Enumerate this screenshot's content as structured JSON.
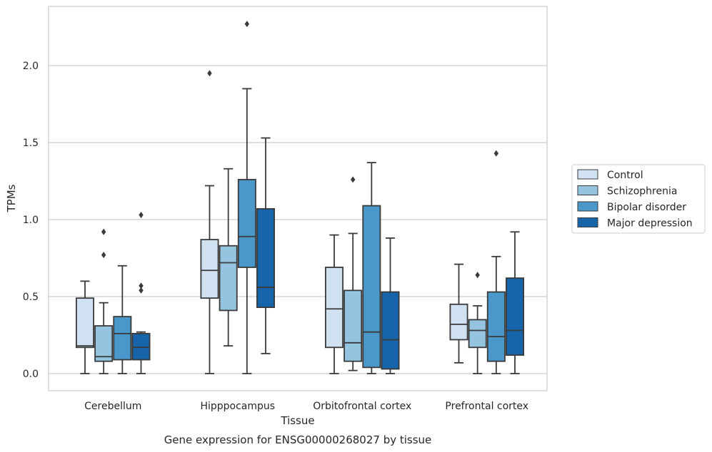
{
  "chart_data": {
    "type": "box",
    "xlabel": "Tissue",
    "ylabel": "TPMs",
    "caption": "Gene expression for ENSG00000268027 by tissue",
    "ylim": [
      -0.11,
      2.38
    ],
    "yticks": [
      "0.0",
      "0.5",
      "1.0",
      "1.5",
      "2.0"
    ],
    "grid": "horizontal",
    "legend_position": "right",
    "categories": [
      "Cerebellum",
      "Hipppocampus",
      "Orbitofrontal cortex",
      "Prefrontal cortex"
    ],
    "series": [
      {
        "name": "Control",
        "color": "#d0e1f2",
        "boxes": [
          {
            "whisker_low": 0.0,
            "q1": 0.17,
            "median": 0.18,
            "q3": 0.49,
            "whisker_high": 0.6,
            "outliers": []
          },
          {
            "whisker_low": 0.0,
            "q1": 0.49,
            "median": 0.67,
            "q3": 0.87,
            "whisker_high": 1.22,
            "outliers": [
              1.95
            ]
          },
          {
            "whisker_low": 0.0,
            "q1": 0.17,
            "median": 0.42,
            "q3": 0.69,
            "whisker_high": 0.9,
            "outliers": []
          },
          {
            "whisker_low": 0.07,
            "q1": 0.22,
            "median": 0.32,
            "q3": 0.45,
            "whisker_high": 0.71,
            "outliers": []
          }
        ]
      },
      {
        "name": "Schizophrenia",
        "color": "#94c4df",
        "boxes": [
          {
            "whisker_low": 0.0,
            "q1": 0.08,
            "median": 0.11,
            "q3": 0.31,
            "whisker_high": 0.46,
            "outliers": [
              0.77,
              0.92
            ]
          },
          {
            "whisker_low": 0.18,
            "q1": 0.41,
            "median": 0.72,
            "q3": 0.83,
            "whisker_high": 1.33,
            "outliers": []
          },
          {
            "whisker_low": 0.02,
            "q1": 0.08,
            "median": 0.2,
            "q3": 0.54,
            "whisker_high": 0.91,
            "outliers": [
              1.26
            ]
          },
          {
            "whisker_low": 0.0,
            "q1": 0.17,
            "median": 0.28,
            "q3": 0.35,
            "whisker_high": 0.44,
            "outliers": [
              0.64
            ]
          }
        ]
      },
      {
        "name": "Bipolar disorder",
        "color": "#4a98c9",
        "boxes": [
          {
            "whisker_low": 0.0,
            "q1": 0.09,
            "median": 0.26,
            "q3": 0.37,
            "whisker_high": 0.7,
            "outliers": []
          },
          {
            "whisker_low": 0.0,
            "q1": 0.69,
            "median": 0.89,
            "q3": 1.26,
            "whisker_high": 1.85,
            "outliers": [
              2.27
            ]
          },
          {
            "whisker_low": 0.0,
            "q1": 0.04,
            "median": 0.27,
            "q3": 1.09,
            "whisker_high": 1.37,
            "outliers": []
          },
          {
            "whisker_low": 0.0,
            "q1": 0.08,
            "median": 0.24,
            "q3": 0.53,
            "whisker_high": 0.76,
            "outliers": [
              1.43
            ]
          }
        ]
      },
      {
        "name": "Major depression",
        "color": "#1764ab",
        "boxes": [
          {
            "whisker_low": 0.0,
            "q1": 0.09,
            "median": 0.17,
            "q3": 0.26,
            "whisker_high": 0.27,
            "outliers": [
              0.54,
              0.57,
              1.03
            ]
          },
          {
            "whisker_low": 0.13,
            "q1": 0.43,
            "median": 0.56,
            "q3": 1.07,
            "whisker_high": 1.53,
            "outliers": []
          },
          {
            "whisker_low": 0.0,
            "q1": 0.03,
            "median": 0.22,
            "q3": 0.53,
            "whisker_high": 0.88,
            "outliers": []
          },
          {
            "whisker_low": 0.0,
            "q1": 0.12,
            "median": 0.28,
            "q3": 0.62,
            "whisker_high": 0.92,
            "outliers": []
          }
        ]
      }
    ]
  }
}
